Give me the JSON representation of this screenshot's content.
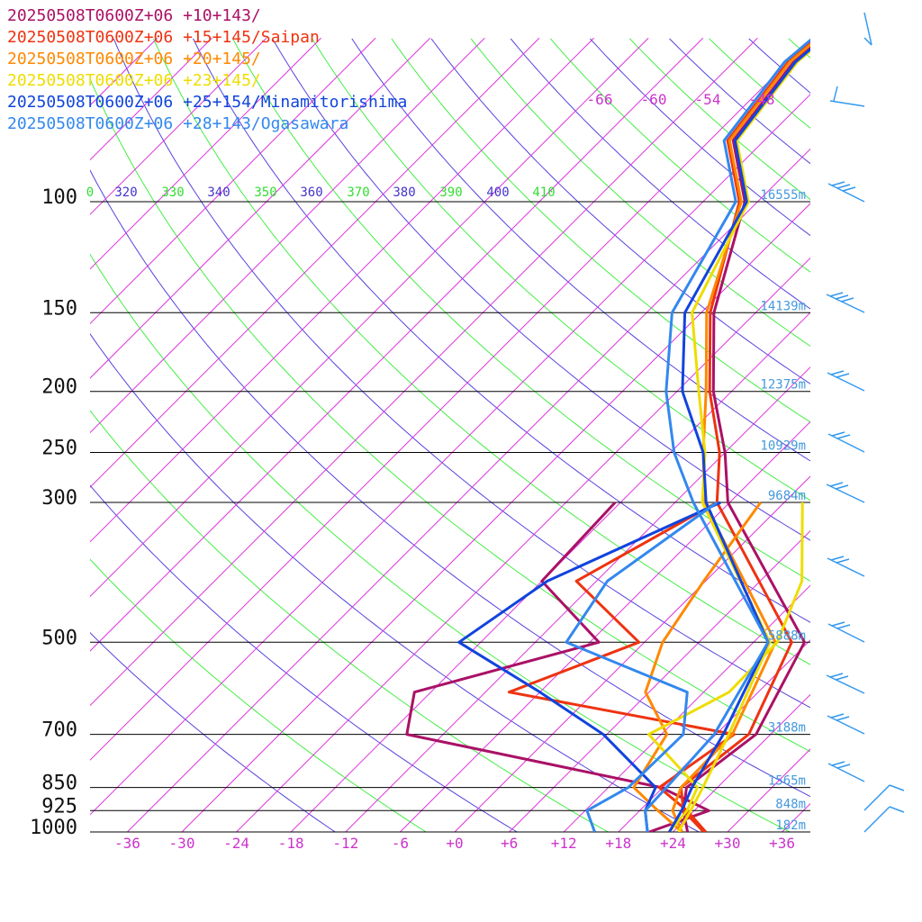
{
  "chart_data": {
    "type": "line",
    "title": "",
    "pressure_levels": [
      100,
      150,
      200,
      250,
      300,
      500,
      700,
      850,
      925,
      1000
    ],
    "pressure_tick_labels": [
      "100",
      "150",
      "200",
      "250",
      "300",
      "500",
      "700",
      "850",
      "925",
      "1000"
    ],
    "height_labels": [
      "16555m",
      "14139m",
      "12375m",
      "10929m",
      "9684m",
      "5888m",
      "3188m",
      "1565m",
      "848m",
      "182m"
    ],
    "temperature_ticks": [
      -36,
      -30,
      -24,
      -18,
      -12,
      -6,
      0,
      6,
      12,
      18,
      24,
      30,
      36
    ],
    "temperature_tick_labels": [
      "-36",
      "-30",
      "-24",
      "-18",
      "-12",
      "-6",
      "+0",
      "+6",
      "+12",
      "+18",
      "+24",
      "+30",
      "+36"
    ],
    "theta_labels": [
      {
        "text": "0",
        "color": "#33dd33"
      },
      {
        "text": "320",
        "color": "#4433cc"
      },
      {
        "text": "330",
        "color": "#33dd33"
      },
      {
        "text": "340",
        "color": "#4433cc"
      },
      {
        "text": "350",
        "color": "#33dd33"
      },
      {
        "text": "360",
        "color": "#4433cc"
      },
      {
        "text": "370",
        "color": "#33dd33"
      },
      {
        "text": "380",
        "color": "#4433cc"
      },
      {
        "text": "390",
        "color": "#33dd33"
      },
      {
        "text": "400",
        "color": "#4433cc"
      },
      {
        "text": "410",
        "color": "#33dd33"
      }
    ],
    "isotherm_top_labels": [
      "-66",
      "-60",
      "-54",
      "-48"
    ],
    "series": [
      {
        "name": "20250508T0600Z+06 +10+143/",
        "color": "#aa1166",
        "temperature": [
          [
            1000,
            25.6
          ],
          [
            925,
            22.8
          ],
          [
            850,
            20.6
          ],
          [
            700,
            22.4
          ],
          [
            500,
            17.6
          ],
          [
            300,
            -6.2
          ],
          [
            250,
            -12.0
          ],
          [
            200,
            -20.0
          ],
          [
            150,
            -28.6
          ],
          [
            100,
            -37.4
          ]
        ],
        "dewpoint": [
          [
            1000,
            21.4
          ],
          [
            925,
            25.6
          ],
          [
            850,
            17.8
          ],
          [
            700,
            -16.0
          ],
          [
            600,
            -19.8
          ],
          [
            500,
            -5.0
          ],
          [
            400,
            -18.0
          ],
          [
            300,
            -18.6
          ]
        ]
      },
      {
        "name": "20250508T0600Z+06 +15+145/Saipan",
        "color": "#ee3311",
        "temperature": [
          [
            1000,
            27.4
          ],
          [
            925,
            22.8
          ],
          [
            850,
            20.0
          ],
          [
            700,
            21.6
          ],
          [
            500,
            16.2
          ],
          [
            300,
            -7.4
          ],
          [
            250,
            -12.6
          ],
          [
            200,
            -20.4
          ],
          [
            150,
            -29.0
          ],
          [
            100,
            -38.0
          ]
        ],
        "dewpoint": [
          [
            1000,
            27.6
          ],
          [
            925,
            23.2
          ],
          [
            850,
            17.6
          ],
          [
            700,
            20.0
          ],
          [
            600,
            -9.4
          ],
          [
            500,
            -0.6
          ],
          [
            400,
            -14.2
          ],
          [
            300,
            -7.4
          ]
        ]
      },
      {
        "name": "20250508T0600Z+06 +20+145/",
        "color": "#ff8800",
        "temperature": [
          [
            1000,
            25.0
          ],
          [
            925,
            21.6
          ],
          [
            850,
            20.0
          ],
          [
            700,
            19.8
          ],
          [
            500,
            14.4
          ],
          [
            300,
            -8.8
          ],
          [
            250,
            -14.4
          ],
          [
            200,
            -20.8
          ],
          [
            150,
            -29.4
          ],
          [
            100,
            -37.8
          ]
        ],
        "dewpoint": [
          [
            1000,
            25.0
          ],
          [
            925,
            20.0
          ],
          [
            850,
            14.8
          ],
          [
            700,
            12.6
          ],
          [
            600,
            5.6
          ],
          [
            500,
            2.0
          ],
          [
            400,
            -0.2
          ],
          [
            300,
            -2.6
          ]
        ]
      },
      {
        "name": "20250508T0600Z+06 +23+145/",
        "color": "#eedd00",
        "temperature": [
          [
            1000,
            24.6
          ],
          [
            925,
            23.6
          ],
          [
            850,
            22.4
          ],
          [
            700,
            19.4
          ],
          [
            500,
            13.8
          ],
          [
            300,
            -9.0
          ],
          [
            250,
            -14.2
          ],
          [
            200,
            -21.6
          ],
          [
            150,
            -31.0
          ],
          [
            100,
            -37.0
          ]
        ],
        "dewpoint": [
          [
            1000,
            23.6
          ],
          [
            925,
            23.2
          ],
          [
            850,
            21.8
          ],
          [
            700,
            10.6
          ],
          [
            600,
            14.8
          ],
          [
            500,
            14.6
          ],
          [
            400,
            10.6
          ],
          [
            300,
            2.0
          ]
        ]
      },
      {
        "name": "20250508T0600Z+06 +25+154/Minamitorishima",
        "color": "#1144dd",
        "temperature": [
          [
            1000,
            23.6
          ],
          [
            925,
            22.6
          ],
          [
            850,
            21.2
          ],
          [
            700,
            18.8
          ],
          [
            500,
            13.6
          ],
          [
            300,
            -8.6
          ],
          [
            250,
            -14.4
          ],
          [
            200,
            -23.4
          ],
          [
            150,
            -31.8
          ],
          [
            100,
            -37.2
          ]
        ],
        "dewpoint": [
          [
            1000,
            21.2
          ],
          [
            925,
            18.6
          ],
          [
            850,
            17.2
          ],
          [
            700,
            5.6
          ],
          [
            600,
            -6.0
          ],
          [
            500,
            -20.4
          ],
          [
            400,
            -17.4
          ],
          [
            300,
            -7.0
          ]
        ]
      },
      {
        "name": "20250508T0600Z+06 +28+143/Ogasawara",
        "color": "#3388ee",
        "temperature": [
          [
            1000,
            21.2
          ],
          [
            925,
            18.6
          ],
          [
            850,
            18.4
          ],
          [
            700,
            17.8
          ],
          [
            500,
            13.6
          ],
          [
            300,
            -10.0
          ],
          [
            250,
            -17.6
          ],
          [
            200,
            -25.2
          ],
          [
            150,
            -33.2
          ],
          [
            100,
            -38.4
          ]
        ],
        "dewpoint": [
          [
            1000,
            15.4
          ],
          [
            925,
            12.2
          ],
          [
            850,
            14.2
          ],
          [
            700,
            14.4
          ],
          [
            600,
            10.2
          ],
          [
            500,
            -8.6
          ],
          [
            400,
            -10.8
          ],
          [
            300,
            -7.4
          ]
        ]
      }
    ]
  }
}
